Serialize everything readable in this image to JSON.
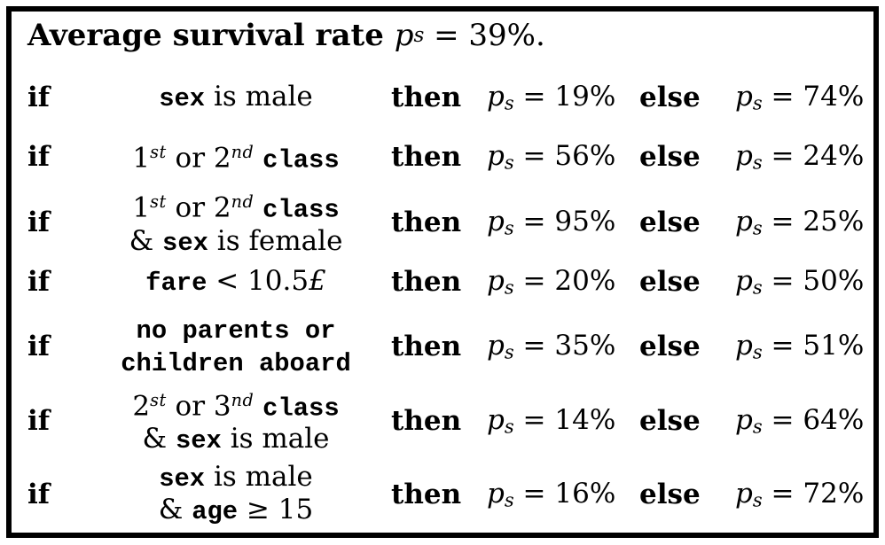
{
  "figure": {
    "background_color": "#ffffff",
    "border_color": "#000000",
    "text_color": "#000000"
  },
  "title": {
    "text": "Average survival rate p_s = 39%.",
    "segments": [
      {
        "t": "Average survival rate ",
        "s": "bf"
      },
      {
        "t": "p",
        "s": "it"
      },
      {
        "t": "s",
        "s": "sub"
      },
      {
        "t": " = 39%.",
        "s": "rm"
      }
    ]
  },
  "labels": {
    "if": "if",
    "then": "then",
    "else": "else"
  },
  "rules": [
    {
      "condition_text": "sex is male",
      "then_text": "p_s = 19%",
      "else_text": "p_s = 74%",
      "condition_lines": [
        [
          {
            "t": "sex",
            "s": "tt"
          },
          {
            "t": " is male",
            "s": "rm"
          }
        ]
      ],
      "then_segments": [
        {
          "t": "p",
          "s": "it"
        },
        {
          "t": "s",
          "s": "sub"
        },
        {
          "t": " = 19%",
          "s": "rm"
        }
      ],
      "else_segments": [
        {
          "t": "p",
          "s": "it"
        },
        {
          "t": "s",
          "s": "sub"
        },
        {
          "t": " = 74%",
          "s": "rm"
        }
      ]
    },
    {
      "condition_text": "1st or 2nd class",
      "then_text": "p_s = 56%",
      "else_text": "p_s = 24%",
      "condition_lines": [
        [
          {
            "t": "1",
            "s": "rm"
          },
          {
            "t": "st",
            "s": "sup"
          },
          {
            "t": " or ",
            "s": "rm"
          },
          {
            "t": "2",
            "s": "rm"
          },
          {
            "t": "nd",
            "s": "sup"
          },
          {
            "t": " ",
            "s": "rm"
          },
          {
            "t": "class",
            "s": "tt"
          }
        ]
      ],
      "then_segments": [
        {
          "t": "p",
          "s": "it"
        },
        {
          "t": "s",
          "s": "sub"
        },
        {
          "t": " = 56%",
          "s": "rm"
        }
      ],
      "else_segments": [
        {
          "t": "p",
          "s": "it"
        },
        {
          "t": "s",
          "s": "sub"
        },
        {
          "t": " = 24%",
          "s": "rm"
        }
      ]
    },
    {
      "condition_text": "1st or 2nd class & sex is female",
      "then_text": "p_s = 95%",
      "else_text": "p_s = 25%",
      "condition_lines": [
        [
          {
            "t": "1",
            "s": "rm"
          },
          {
            "t": "st",
            "s": "sup"
          },
          {
            "t": " or ",
            "s": "rm"
          },
          {
            "t": "2",
            "s": "rm"
          },
          {
            "t": "nd",
            "s": "sup"
          },
          {
            "t": " ",
            "s": "rm"
          },
          {
            "t": "class",
            "s": "tt"
          }
        ],
        [
          {
            "t": "& ",
            "s": "rm"
          },
          {
            "t": "sex",
            "s": "tt"
          },
          {
            "t": " is female",
            "s": "rm"
          }
        ]
      ],
      "then_segments": [
        {
          "t": "p",
          "s": "it"
        },
        {
          "t": "s",
          "s": "sub"
        },
        {
          "t": " = 95%",
          "s": "rm"
        }
      ],
      "else_segments": [
        {
          "t": "p",
          "s": "it"
        },
        {
          "t": "s",
          "s": "sub"
        },
        {
          "t": " = 25%",
          "s": "rm"
        }
      ]
    },
    {
      "condition_text": "fare < 10.5£",
      "then_text": "p_s = 20%",
      "else_text": "p_s = 50%",
      "condition_lines": [
        [
          {
            "t": "fare",
            "s": "tt"
          },
          {
            "t": " < 10.5",
            "s": "rm"
          },
          {
            "t": "£",
            "s": "it"
          }
        ]
      ],
      "then_segments": [
        {
          "t": "p",
          "s": "it"
        },
        {
          "t": "s",
          "s": "sub"
        },
        {
          "t": " = 20%",
          "s": "rm"
        }
      ],
      "else_segments": [
        {
          "t": "p",
          "s": "it"
        },
        {
          "t": "s",
          "s": "sub"
        },
        {
          "t": " = 50%",
          "s": "rm"
        }
      ]
    },
    {
      "condition_text": "no parents or children aboard",
      "then_text": "p_s = 35%",
      "else_text": "p_s = 51%",
      "condition_lines": [
        [
          {
            "t": "no parents or",
            "s": "tt"
          }
        ],
        [
          {
            "t": "children aboard",
            "s": "tt"
          }
        ]
      ],
      "then_segments": [
        {
          "t": "p",
          "s": "it"
        },
        {
          "t": "s",
          "s": "sub"
        },
        {
          "t": " = 35%",
          "s": "rm"
        }
      ],
      "else_segments": [
        {
          "t": "p",
          "s": "it"
        },
        {
          "t": "s",
          "s": "sub"
        },
        {
          "t": " = 51%",
          "s": "rm"
        }
      ]
    },
    {
      "condition_text": "2st or 3nd class & sex is male",
      "then_text": "p_s = 14%",
      "else_text": "p_s = 64%",
      "condition_lines": [
        [
          {
            "t": "2",
            "s": "rm"
          },
          {
            "t": "st",
            "s": "sup"
          },
          {
            "t": " or ",
            "s": "rm"
          },
          {
            "t": "3",
            "s": "rm"
          },
          {
            "t": "nd",
            "s": "sup"
          },
          {
            "t": " ",
            "s": "rm"
          },
          {
            "t": "class",
            "s": "tt"
          }
        ],
        [
          {
            "t": "& ",
            "s": "rm"
          },
          {
            "t": "sex",
            "s": "tt"
          },
          {
            "t": " is male",
            "s": "rm"
          }
        ]
      ],
      "then_segments": [
        {
          "t": "p",
          "s": "it"
        },
        {
          "t": "s",
          "s": "sub"
        },
        {
          "t": " = 14%",
          "s": "rm"
        }
      ],
      "else_segments": [
        {
          "t": "p",
          "s": "it"
        },
        {
          "t": "s",
          "s": "sub"
        },
        {
          "t": " = 64%",
          "s": "rm"
        }
      ]
    },
    {
      "condition_text": "sex is male & age ≥ 15",
      "then_text": "p_s = 16%",
      "else_text": "p_s = 72%",
      "condition_lines": [
        [
          {
            "t": "sex",
            "s": "tt"
          },
          {
            "t": " is male",
            "s": "rm"
          }
        ],
        [
          {
            "t": "& ",
            "s": "rm"
          },
          {
            "t": "age",
            "s": "tt"
          },
          {
            "t": " ≥ 15",
            "s": "rm"
          }
        ]
      ],
      "then_segments": [
        {
          "t": "p",
          "s": "it"
        },
        {
          "t": "s",
          "s": "sub"
        },
        {
          "t": " = 16%",
          "s": "rm"
        }
      ],
      "else_segments": [
        {
          "t": "p",
          "s": "it"
        },
        {
          "t": "s",
          "s": "sub"
        },
        {
          "t": " = 72%",
          "s": "rm"
        }
      ]
    }
  ]
}
